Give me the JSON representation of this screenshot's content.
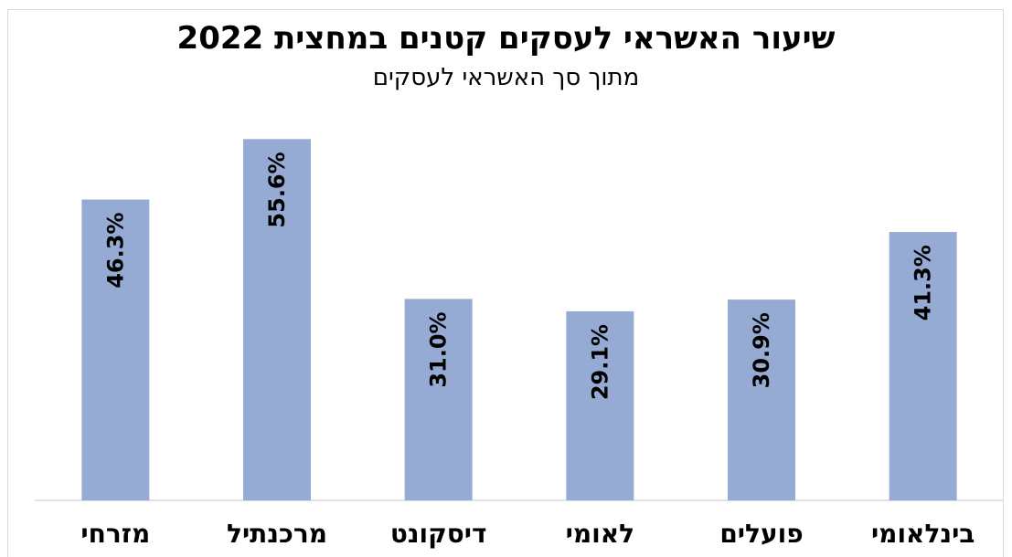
{
  "chart_data": {
    "type": "bar",
    "title": "שיעור האשראי לעסקים קטנים במחצית 2022",
    "subtitle": "מתוך סך האשראי לעסקים",
    "categories": [
      "בינלאומי",
      "פועלים",
      "לאומי",
      "דיסקונט",
      "מרכנתיל",
      "מזרחי"
    ],
    "values": [
      41.3,
      30.9,
      29.1,
      31.0,
      55.6,
      46.3
    ],
    "value_labels": [
      "41.3%",
      "30.9%",
      "29.1%",
      "31.0%",
      "55.6%",
      "46.3%"
    ],
    "ylim": [
      0,
      60
    ],
    "grid": false,
    "legend": "none",
    "x_direction": "rtl",
    "colors": {
      "bar": "#95abd3",
      "axis": "#d9d9d9",
      "text": "#000000"
    }
  }
}
